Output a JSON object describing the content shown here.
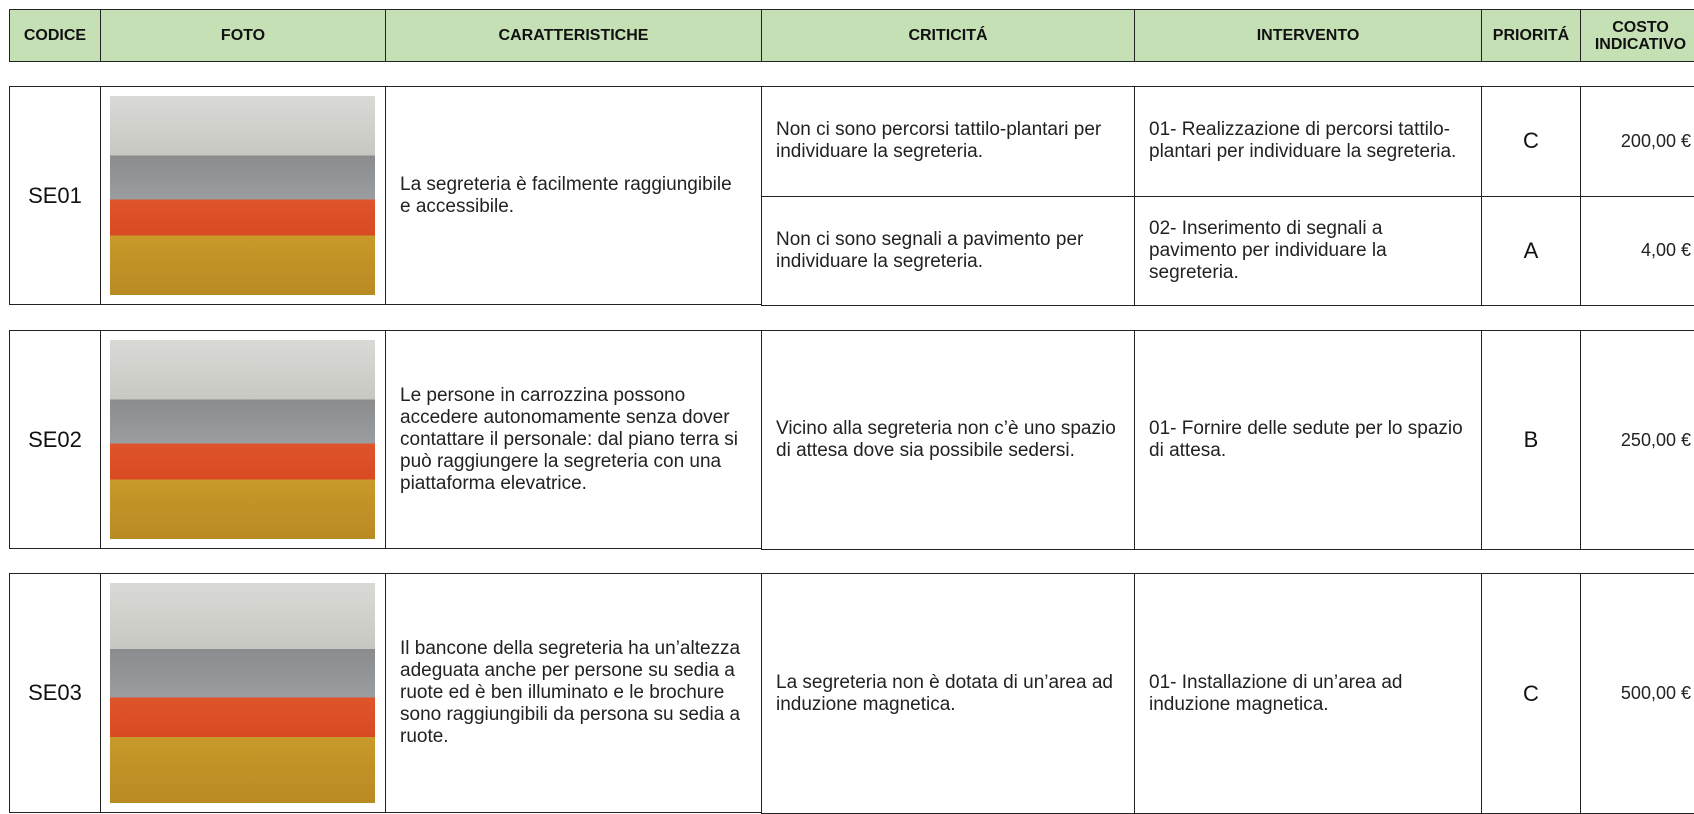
{
  "header": {
    "columns": [
      "CODICE",
      "FOTO",
      "CARATTERISTICHE",
      "CRITICITÁ",
      "INTERVENTO",
      "PRIORITÁ",
      "COSTO INDICATIVO"
    ]
  },
  "rows": [
    {
      "code": "SE01",
      "characteristics": "La segreteria è facilmente raggiungibile e accessibile.",
      "issues": [
        {
          "criticality": "Non ci sono percorsi tattilo-plantari per individuare la segreteria.",
          "intervention": "01- Realizzazione di percorsi tattilo-plantari per individuare la segreteria.",
          "priority": "C",
          "cost": "200,00 €"
        },
        {
          "criticality": "Non ci sono segnali a pavimento per individuare la segreteria.",
          "intervention": "02- Inserimento di segnali a pavimento per individuare la segreteria.",
          "priority": "A",
          "cost": "4,00 €"
        }
      ]
    },
    {
      "code": "SE02",
      "characteristics": "Le persone in carrozzina possono accedere autonomamente senza dover contattare il personale: dal piano terra si può raggiungere la segreteria con una piattaforma elevatrice.",
      "issues": [
        {
          "criticality": "Vicino alla segreteria non c’è uno spazio di attesa dove sia possibile sedersi.",
          "intervention": "01- Fornire delle sedute per lo spazio di attesa.",
          "priority": "B",
          "cost": "250,00 €"
        }
      ]
    },
    {
      "code": "SE03",
      "characteristics": "Il bancone della segreteria ha un’altezza adeguata anche per persone su sedia a ruote ed è ben illuminato e le brochure sono raggiungibili da persona su sedia a ruote.",
      "issues": [
        {
          "criticality": "La segreteria non è dotata di un’area ad induzione magnetica.",
          "intervention": "01- Installazione di un’area ad induzione magnetica.",
          "priority": "C",
          "cost": "500,00 €"
        }
      ]
    }
  ]
}
